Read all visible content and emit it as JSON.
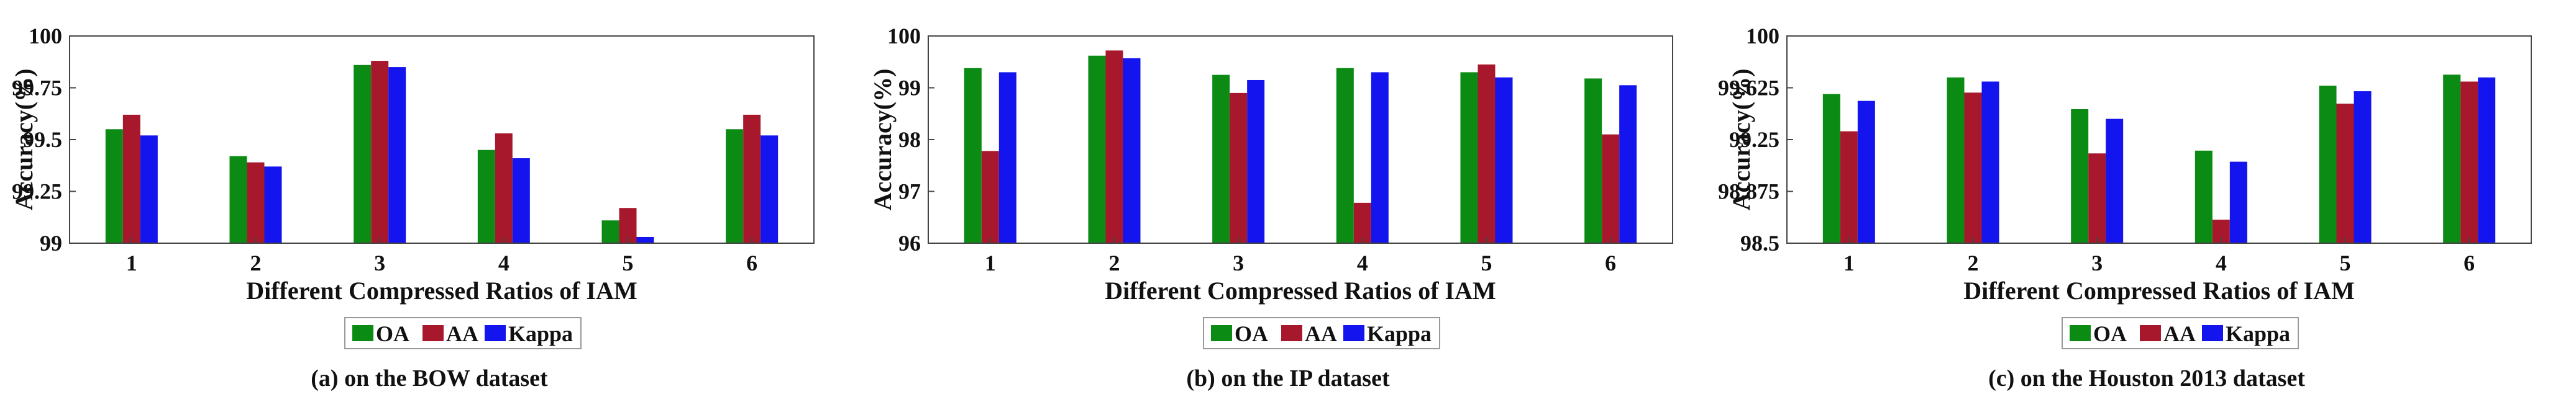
{
  "colors": {
    "OA": "#0b8a14",
    "AA": "#a8182c",
    "Kappa": "#1414ee"
  },
  "chart_data": [
    {
      "type": "bar",
      "caption": "(a) on the BOW dataset",
      "xlabel": "Different Compressed Ratios of IAM",
      "ylabel": "Accuracy(%)",
      "categories": [
        "1",
        "2",
        "3",
        "4",
        "5",
        "6"
      ],
      "ylim": [
        99,
        100
      ],
      "yticks": [
        "99",
        "99.25",
        "99.5",
        "99.75",
        "100"
      ],
      "ytick_values": [
        99,
        99.25,
        99.5,
        99.75,
        100
      ],
      "legend": "bottom",
      "series": [
        {
          "name": "OA",
          "values": [
            99.55,
            99.42,
            99.86,
            99.45,
            99.11,
            99.55
          ]
        },
        {
          "name": "AA",
          "values": [
            99.62,
            99.39,
            99.88,
            99.53,
            99.17,
            99.62
          ]
        },
        {
          "name": "Kappa",
          "values": [
            99.52,
            99.37,
            99.85,
            99.41,
            99.03,
            99.52
          ]
        }
      ]
    },
    {
      "type": "bar",
      "caption": "(b) on the IP dataset",
      "xlabel": "Different Compressed Ratios of IAM",
      "ylabel": "Accuracy(%)",
      "categories": [
        "1",
        "2",
        "3",
        "4",
        "5",
        "6"
      ],
      "ylim": [
        96,
        100
      ],
      "yticks": [
        "96",
        "97",
        "98",
        "99",
        "100"
      ],
      "ytick_values": [
        96,
        97,
        98,
        99,
        100
      ],
      "legend": "bottom",
      "series": [
        {
          "name": "OA",
          "values": [
            99.38,
            99.62,
            99.25,
            99.38,
            99.3,
            99.18
          ]
        },
        {
          "name": "AA",
          "values": [
            97.78,
            99.72,
            98.9,
            96.78,
            99.45,
            98.1
          ]
        },
        {
          "name": "Kappa",
          "values": [
            99.3,
            99.57,
            99.15,
            99.3,
            99.2,
            99.05
          ]
        }
      ]
    },
    {
      "type": "bar",
      "caption": "(c) on the Houston 2013 dataset",
      "xlabel": "Different Compressed Ratios of IAM",
      "ylabel": "Accuracy(%)",
      "categories": [
        "1",
        "2",
        "3",
        "4",
        "5",
        "6"
      ],
      "ylim": [
        98.5,
        100
      ],
      "yticks": [
        "98.5",
        "98.875",
        "99.25",
        "99.625",
        "100"
      ],
      "ytick_values": [
        98.5,
        98.875,
        99.25,
        99.625,
        100
      ],
      "legend": "bottom",
      "series": [
        {
          "name": "OA",
          "values": [
            99.58,
            99.7,
            99.47,
            99.17,
            99.64,
            99.72
          ]
        },
        {
          "name": "AA",
          "values": [
            99.31,
            99.59,
            99.15,
            98.67,
            99.51,
            99.67
          ]
        },
        {
          "name": "Kappa",
          "values": [
            99.53,
            99.67,
            99.4,
            99.09,
            99.6,
            99.7
          ]
        }
      ]
    }
  ]
}
